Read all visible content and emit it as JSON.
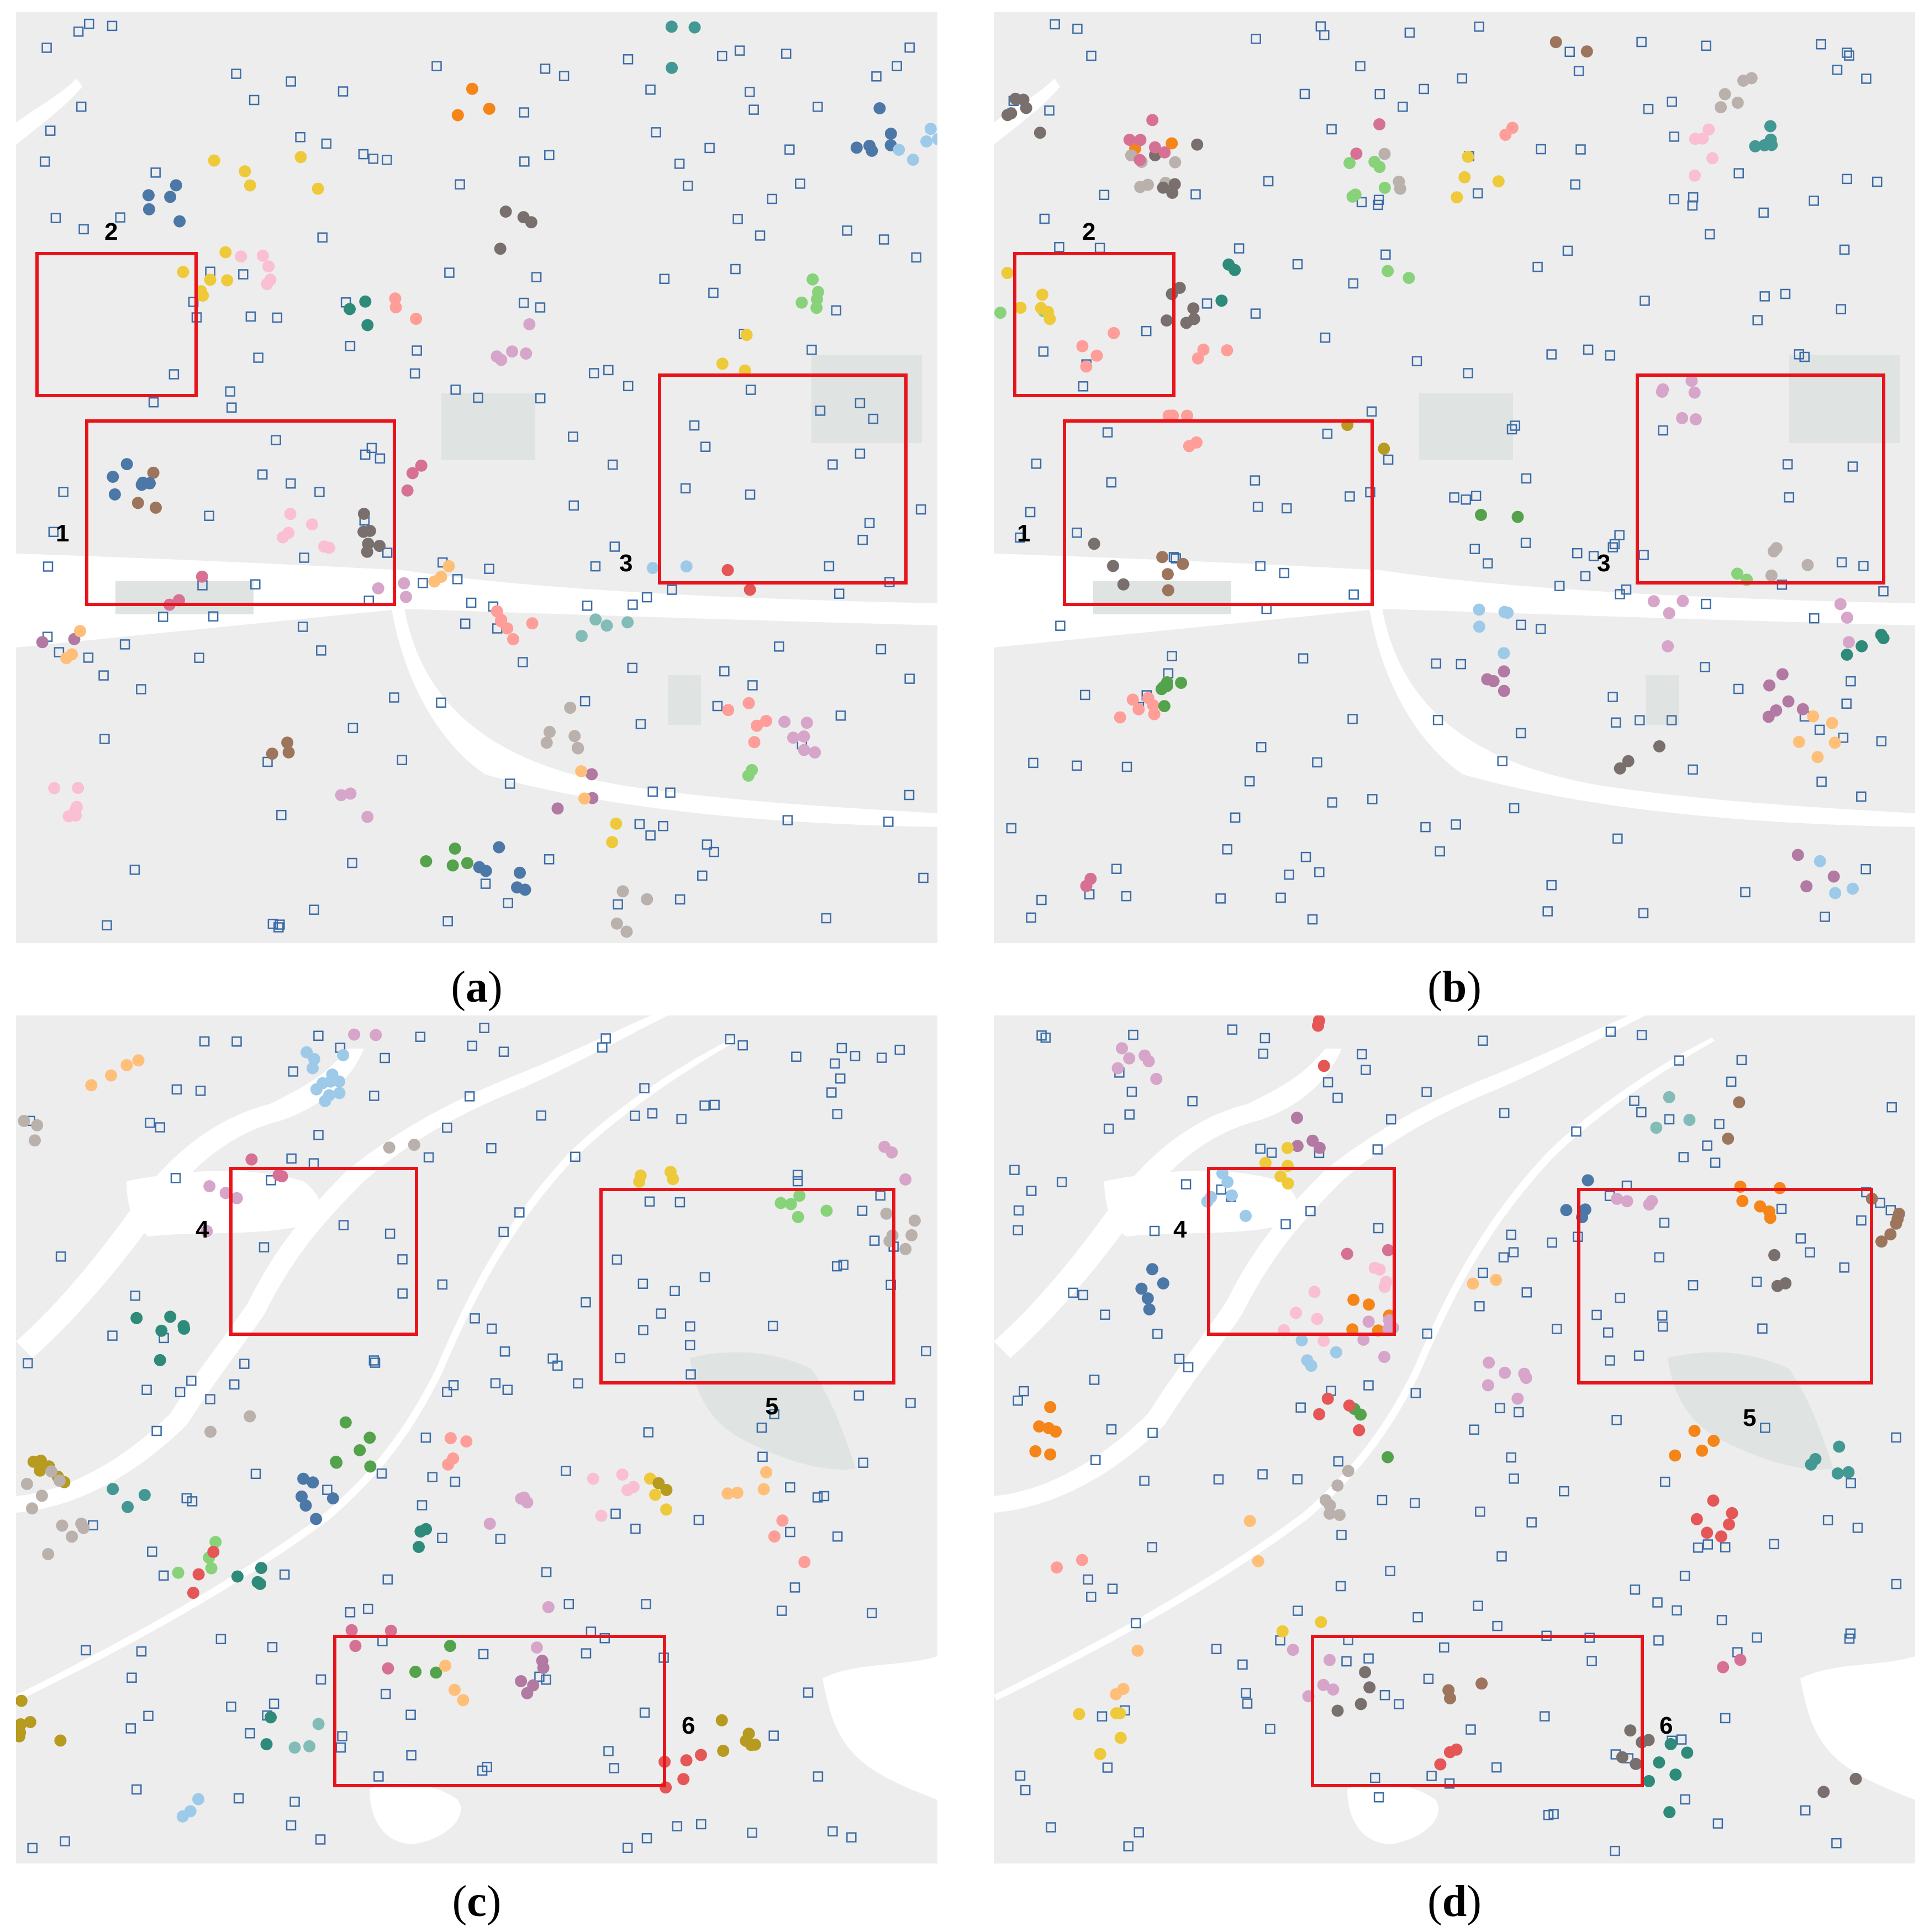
{
  "captions": {
    "a": {
      "open": "(",
      "letter": "a",
      "close": ")"
    },
    "b": {
      "open": "(",
      "letter": "b",
      "close": ")"
    },
    "c": {
      "open": "(",
      "letter": "c",
      "close": ")"
    },
    "d": {
      "open": "(",
      "letter": "d",
      "close": ")"
    }
  },
  "box_labels": {
    "a": [
      "1",
      "2",
      "3"
    ],
    "b": [
      "1",
      "2",
      "3"
    ],
    "c": [
      "4",
      "5",
      "6"
    ],
    "d": [
      "4",
      "5",
      "6"
    ]
  },
  "colors": {
    "land": "#ededed",
    "water": "#ffffff",
    "park": "#dfe3e1",
    "highlight_box": "#e8141b",
    "poi_marker": "#3b6da8",
    "cluster_palette": [
      "#e45756",
      "#4c78a8",
      "#f58518",
      "#54a24b",
      "#88d27a",
      "#eeca3b",
      "#b79a20",
      "#439894",
      "#83bcb6",
      "#9d755d",
      "#d6a5c9",
      "#ff9d98",
      "#fabfd2",
      "#bab0ac",
      "#d67195",
      "#b279a2",
      "#9ecae9",
      "#ffbf79",
      "#79706e",
      "#2e8b7a"
    ]
  },
  "markers": {
    "poi_icon": "hollow-square",
    "cluster_icon": "filled-circle"
  }
}
